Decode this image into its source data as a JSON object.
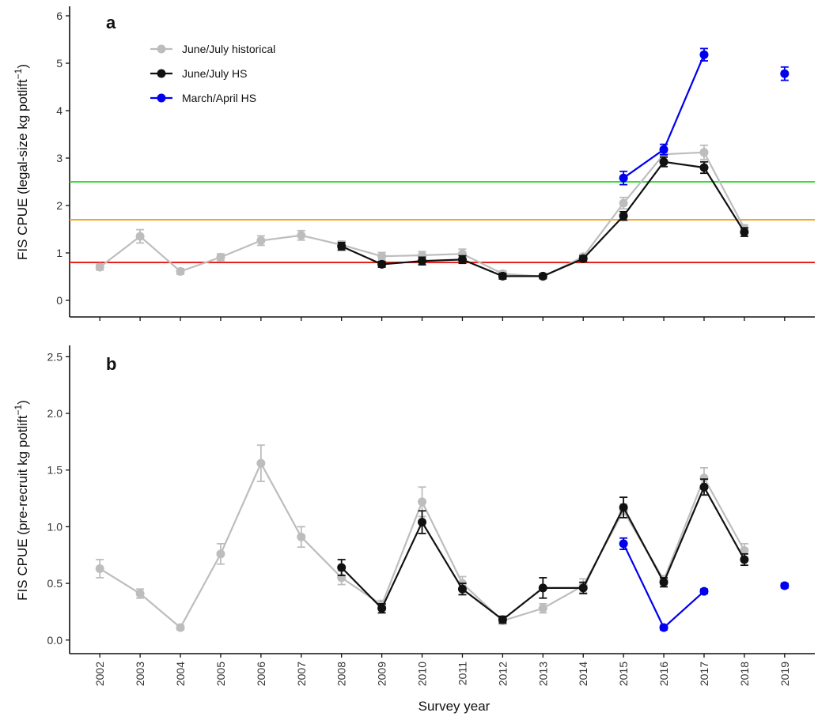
{
  "chart_data": [
    {
      "type": "line",
      "panel_label": "a",
      "ylabel": "FIS CPUE (legal-size kg potlift",
      "ylabel_superscript": "−1",
      "ylabel_close": ")",
      "xlabel": "",
      "ylim": [
        -0.35,
        6.2
      ],
      "yticks": [
        0,
        1,
        2,
        3,
        4,
        5,
        6
      ],
      "ytick_labels": [
        "0",
        "1",
        "2",
        "3",
        "4",
        "5",
        "6"
      ],
      "xlim": [
        2001.25,
        2019.75
      ],
      "reference_lines": [
        {
          "value": 2.5,
          "color": "#33dd33"
        },
        {
          "value": 1.7,
          "color": "#f5a623"
        },
        {
          "value": 0.8,
          "color": "#e8231f"
        }
      ],
      "series": [
        {
          "name": "June/July historical",
          "color": "#bdbdbd",
          "points": [
            {
              "x": 2002,
              "y": 0.7,
              "err": 0.06
            },
            {
              "x": 2003,
              "y": 1.35,
              "err": 0.14
            },
            {
              "x": 2004,
              "y": 0.61,
              "err": 0.06
            },
            {
              "x": 2005,
              "y": 0.91,
              "err": 0.07
            },
            {
              "x": 2006,
              "y": 1.26,
              "err": 0.1
            },
            {
              "x": 2007,
              "y": 1.37,
              "err": 0.1
            },
            {
              "x": 2008,
              "y": 1.17,
              "err": 0.08
            },
            {
              "x": 2009,
              "y": 0.93,
              "err": 0.08
            },
            {
              "x": 2010,
              "y": 0.95,
              "err": 0.08
            },
            {
              "x": 2011,
              "y": 0.98,
              "err": 0.1
            },
            {
              "x": 2012,
              "y": 0.56,
              "err": 0.06
            },
            {
              "x": 2013,
              "y": 0.5,
              "err": 0.05
            },
            {
              "x": 2014,
              "y": 0.92,
              "err": 0.05
            },
            {
              "x": 2015,
              "y": 2.05,
              "err": 0.12
            },
            {
              "x": 2016,
              "y": 3.08,
              "err": 0.12
            },
            {
              "x": 2017,
              "y": 3.12,
              "err": 0.15
            },
            {
              "x": 2018,
              "y": 1.52,
              "err": 0.07
            }
          ]
        },
        {
          "name": "June/July HS",
          "color": "#111111",
          "points": [
            {
              "x": 2008,
              "y": 1.14,
              "err": 0.08
            },
            {
              "x": 2009,
              "y": 0.76,
              "err": 0.06
            },
            {
              "x": 2010,
              "y": 0.83,
              "err": 0.08
            },
            {
              "x": 2011,
              "y": 0.86,
              "err": 0.08
            },
            {
              "x": 2012,
              "y": 0.51,
              "err": 0.06
            },
            {
              "x": 2013,
              "y": 0.51,
              "err": 0.05
            },
            {
              "x": 2014,
              "y": 0.88,
              "err": 0.06
            },
            {
              "x": 2015,
              "y": 1.78,
              "err": 0.09
            },
            {
              "x": 2016,
              "y": 2.92,
              "err": 0.1
            },
            {
              "x": 2017,
              "y": 2.8,
              "err": 0.12
            },
            {
              "x": 2018,
              "y": 1.44,
              "err": 0.09
            }
          ]
        },
        {
          "name": "March/April HS",
          "color": "#0000ee",
          "points": [
            {
              "x": 2015,
              "y": 2.58,
              "err": 0.14
            },
            {
              "x": 2016,
              "y": 3.18,
              "err": 0.11
            },
            {
              "x": 2017,
              "y": 5.18,
              "err": 0.13
            },
            {
              "x": 2019,
              "y": 4.78,
              "err": 0.14
            }
          ],
          "connected_years": [
            2015,
            2016,
            2017
          ]
        }
      ]
    },
    {
      "type": "line",
      "panel_label": "b",
      "ylabel": "FIS CPUE (pre-recruit kg potlift",
      "ylabel_superscript": "−1",
      "ylabel_close": ")",
      "xlabel": "Survey year",
      "ylim": [
        -0.12,
        2.6
      ],
      "yticks": [
        0,
        0.5,
        1,
        1.5,
        2,
        2.5
      ],
      "ytick_labels": [
        "0.0",
        "0.5",
        "1.0",
        "1.5",
        "2.0",
        "2.5"
      ],
      "xlim": [
        2001.25,
        2019.75
      ],
      "categories": [
        "2002",
        "2003",
        "2004",
        "2005",
        "2006",
        "2007",
        "2008",
        "2009",
        "2010",
        "2011",
        "2012",
        "2013",
        "2014",
        "2015",
        "2016",
        "2017",
        "2018",
        "2019"
      ],
      "series": [
        {
          "name": "June/July historical",
          "color": "#bdbdbd",
          "points": [
            {
              "x": 2002,
              "y": 0.63,
              "err": 0.08
            },
            {
              "x": 2003,
              "y": 0.41,
              "err": 0.04
            },
            {
              "x": 2004,
              "y": 0.11,
              "err": 0.02
            },
            {
              "x": 2005,
              "y": 0.76,
              "err": 0.09
            },
            {
              "x": 2006,
              "y": 1.56,
              "err": 0.16
            },
            {
              "x": 2007,
              "y": 0.91,
              "err": 0.09
            },
            {
              "x": 2008,
              "y": 0.55,
              "err": 0.06
            },
            {
              "x": 2009,
              "y": 0.31,
              "err": 0.04
            },
            {
              "x": 2010,
              "y": 1.22,
              "err": 0.13
            },
            {
              "x": 2011,
              "y": 0.5,
              "err": 0.06
            },
            {
              "x": 2012,
              "y": 0.17,
              "err": 0.03
            },
            {
              "x": 2013,
              "y": 0.28,
              "err": 0.04
            },
            {
              "x": 2014,
              "y": 0.48,
              "err": 0.06
            },
            {
              "x": 2015,
              "y": 1.14,
              "err": 0.06
            },
            {
              "x": 2016,
              "y": 0.53,
              "err": 0.04
            },
            {
              "x": 2017,
              "y": 1.43,
              "err": 0.09
            },
            {
              "x": 2018,
              "y": 0.79,
              "err": 0.06
            }
          ]
        },
        {
          "name": "June/July HS",
          "color": "#111111",
          "points": [
            {
              "x": 2008,
              "y": 0.64,
              "err": 0.07
            },
            {
              "x": 2009,
              "y": 0.28,
              "err": 0.04
            },
            {
              "x": 2010,
              "y": 1.04,
              "err": 0.1
            },
            {
              "x": 2011,
              "y": 0.45,
              "err": 0.05
            },
            {
              "x": 2012,
              "y": 0.18,
              "err": 0.03
            },
            {
              "x": 2013,
              "y": 0.46,
              "err": 0.09
            },
            {
              "x": 2014,
              "y": 0.46,
              "err": 0.05
            },
            {
              "x": 2015,
              "y": 1.17,
              "err": 0.09
            },
            {
              "x": 2016,
              "y": 0.51,
              "err": 0.04
            },
            {
              "x": 2017,
              "y": 1.35,
              "err": 0.07
            },
            {
              "x": 2018,
              "y": 0.71,
              "err": 0.05
            }
          ]
        },
        {
          "name": "March/April HS",
          "color": "#0000ee",
          "points": [
            {
              "x": 2015,
              "y": 0.85,
              "err": 0.05
            },
            {
              "x": 2016,
              "y": 0.11,
              "err": 0.02
            },
            {
              "x": 2017,
              "y": 0.43,
              "err": 0.02
            },
            {
              "x": 2019,
              "y": 0.48,
              "err": 0.02
            }
          ],
          "connected_years": [
            2015,
            2016,
            2017
          ]
        }
      ]
    }
  ],
  "legend": {
    "placement": "top-left of panel a",
    "entries": [
      {
        "label": "June/July historical",
        "color": "#bdbdbd"
      },
      {
        "label": "June/July HS",
        "color": "#111111"
      },
      {
        "label": "March/April HS",
        "color": "#0000ee"
      }
    ]
  }
}
